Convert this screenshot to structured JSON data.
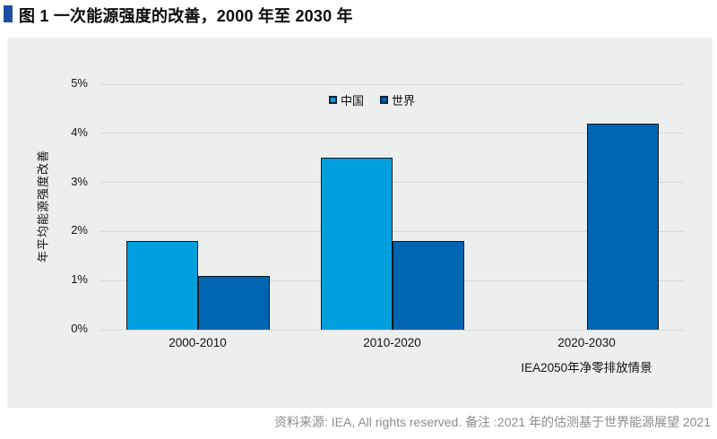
{
  "header": {
    "title": "图 1 一次能源强度的改善，2000 年至 2030 年"
  },
  "chart_data": {
    "type": "bar",
    "title": "图 1 一次能源强度的改善，2000 年至 2030 年",
    "categories": [
      "2000-2010",
      "2010-2020",
      "2020-2030"
    ],
    "category_sublabels": [
      "",
      "",
      "IEA2050年净零排放情景"
    ],
    "series": [
      {
        "name": "中国",
        "color": "#00a0df",
        "values": [
          1.8,
          3.5,
          null
        ]
      },
      {
        "name": "世界",
        "color": "#0066b2",
        "values": [
          1.1,
          1.8,
          4.2
        ]
      }
    ],
    "xlabel": "",
    "ylabel": "年平均能源强度改善",
    "ylim": [
      0,
      5
    ],
    "yticks": [
      0,
      1,
      2,
      3,
      4,
      5
    ],
    "ytick_suffix": "%",
    "grid": true,
    "legend_position": "top-center"
  },
  "footer": {
    "source_note": "资料来源: IEA, All rights reserved. 备注 :2021 年的估测基于世界能源展望 2021"
  },
  "colors": {
    "accent_bullet": "#1c4fa1",
    "panel_background": "#edefee",
    "gridline": "#d8d8d8",
    "bar_border": "#101820",
    "china_bar": "#00a0df",
    "world_bar": "#0066b2",
    "footer_text": "#8c8c8c"
  }
}
